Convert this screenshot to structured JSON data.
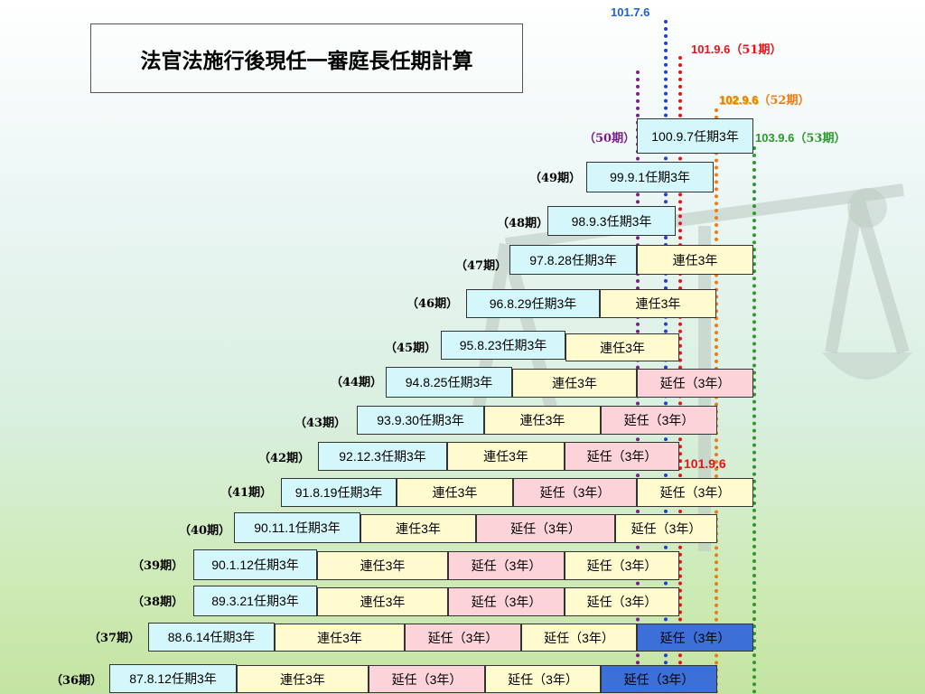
{
  "title": "法官法施行後現任一審庭長任期計算",
  "colors": {
    "blue": "#1f3fd6",
    "red": "#e5141b",
    "orange": "#f07a12",
    "green": "#2a9a2a",
    "purple": "#7a1f8a",
    "start": "#d4f7fb",
    "renew": "#fffbcf",
    "ext": "#fcd3d8",
    "current": "#3c6fd8"
  },
  "marker_dates": {
    "blue": "101.7.6",
    "red": "101.9.6",
    "red_period": "（51期）",
    "orange": "102.9.6",
    "orange_period": "（52期）",
    "green": "103.9.6",
    "green_period": "（53期）",
    "red_inline": "101.9.6"
  },
  "rows": [
    {
      "term": "（50期）",
      "segments": [
        "100.9.7任期3年"
      ]
    },
    {
      "term": "（49期）",
      "segments": [
        "99.9.1任期3年"
      ]
    },
    {
      "term": "（48期）",
      "segments": [
        "98.9.3任期3年"
      ]
    },
    {
      "term": "（47期）",
      "segments": [
        "97.8.28任期3年",
        "連任3年"
      ]
    },
    {
      "term": "（46期）",
      "segments": [
        "96.8.29任期3年",
        "連任3年"
      ]
    },
    {
      "term": "（45期）",
      "segments": [
        "95.8.23任期3年",
        "連任3年"
      ]
    },
    {
      "term": "（44期）",
      "segments": [
        "94.8.25任期3年",
        "連任3年",
        "延任（3年）"
      ]
    },
    {
      "term": "（43期）",
      "segments": [
        "93.9.30任期3年",
        "連任3年",
        "延任（3年）"
      ]
    },
    {
      "term": "（42期）",
      "segments": [
        "92.12.3任期3年",
        "連任3年",
        "延任（3年）"
      ]
    },
    {
      "term": "（41期）",
      "segments": [
        "91.8.19任期3年",
        "連任3年",
        "延任（3年）",
        "延任（3年）"
      ]
    },
    {
      "term": "（40期）",
      "segments": [
        "90.11.1任期3年",
        "連任3年",
        "延任（3年）",
        "延任（3年）"
      ]
    },
    {
      "term": "（39期）",
      "segments": [
        "90.1.12任期3年",
        "連任3年",
        "延任（3年）",
        "延任（3年）"
      ]
    },
    {
      "term": "（38期）",
      "segments": [
        "89.3.21任期3年",
        "連任3年",
        "延任（3年）",
        "延任（3年）"
      ]
    },
    {
      "term": "（37期）",
      "segments": [
        "88.6.14任期3年",
        "連任3年",
        "延任（3年）",
        "延任（3年）",
        "延任（3年）"
      ]
    },
    {
      "term": "（36期）",
      "segments": [
        "87.8.12任期3年",
        "連任3年",
        "延任（3年）",
        "延任（3年）",
        "延任（3年）"
      ]
    }
  ]
}
